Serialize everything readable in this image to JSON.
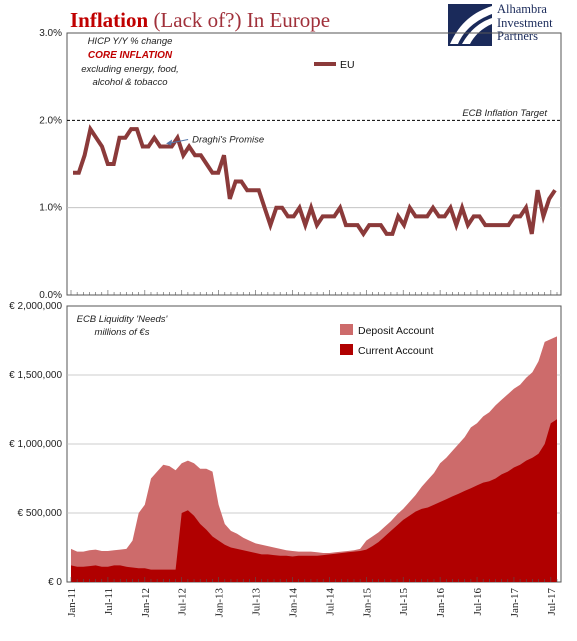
{
  "header": {
    "title_red": "Inflation",
    "title_rest": "(Lack of?) In Europe",
    "logo_text": [
      "Alhambra",
      "Investment",
      "Partners"
    ]
  },
  "colors": {
    "eu_line": "#8b3a3a",
    "deposit": "#cd6b6b",
    "current": "#b00000",
    "title_red": "#c00000",
    "target_line": "#000000",
    "grid": "#bbbbbb"
  },
  "chart_data": [
    {
      "type": "line",
      "notes": [
        "HICP Y/Y % change",
        "CORE INFLATION",
        "excluding energy, food,",
        "alcohol & tobacco"
      ],
      "ylim": [
        0,
        3
      ],
      "yticks": [
        "0.0%",
        "1.0%",
        "2.0%",
        "3.0%"
      ],
      "grid": true,
      "legend_position": "top-center",
      "target": {
        "value": 2.0,
        "label": "ECB Inflation Target"
      },
      "annotation": {
        "text": "Draghi's Promise",
        "at_index": 15
      },
      "x_start": "2011-01",
      "series": [
        {
          "name": "EU",
          "values": [
            1.4,
            1.4,
            1.6,
            1.9,
            1.8,
            1.7,
            1.5,
            1.5,
            1.8,
            1.8,
            1.9,
            1.9,
            1.7,
            1.7,
            1.8,
            1.7,
            1.7,
            1.7,
            1.8,
            1.6,
            1.7,
            1.6,
            1.6,
            1.5,
            1.4,
            1.4,
            1.6,
            1.1,
            1.3,
            1.3,
            1.2,
            1.2,
            1.2,
            1.0,
            0.8,
            1.0,
            1.0,
            0.9,
            0.9,
            1.0,
            0.8,
            1.0,
            0.8,
            0.9,
            0.9,
            0.9,
            1.0,
            0.8,
            0.8,
            0.8,
            0.7,
            0.8,
            0.8,
            0.8,
            0.7,
            0.7,
            0.9,
            0.8,
            1.0,
            0.9,
            0.9,
            0.9,
            1.0,
            0.9,
            0.9,
            1.0,
            0.8,
            1.0,
            0.8,
            0.9,
            0.9,
            0.8,
            0.8,
            0.8,
            0.8,
            0.8,
            0.9,
            0.9,
            1.0,
            0.7,
            1.2,
            0.9,
            1.1,
            1.2
          ]
        }
      ]
    },
    {
      "type": "area",
      "notes": [
        "ECB Liquidity 'Needs'",
        "millions of €s"
      ],
      "ylim": [
        0,
        2000000
      ],
      "yticks": [
        "€ 0",
        "€ 500,000",
        "€ 1,000,000",
        "€ 1,500,000",
        "€ 2,000,000"
      ],
      "grid": true,
      "legend_position": "top-right",
      "x_start": "2011-01",
      "x_step_months": 1,
      "series": [
        {
          "name": "Deposit Account",
          "stacked_total": [
            240000,
            220000,
            220000,
            230000,
            235000,
            225000,
            225000,
            230000,
            235000,
            240000,
            300000,
            500000,
            560000,
            750000,
            800000,
            850000,
            840000,
            810000,
            860000,
            880000,
            860000,
            820000,
            820000,
            800000,
            560000,
            420000,
            370000,
            350000,
            320000,
            300000,
            280000,
            270000,
            260000,
            250000,
            240000,
            230000,
            225000,
            220000,
            220000,
            220000,
            215000,
            210000,
            210000,
            215000,
            220000,
            225000,
            230000,
            240000,
            300000,
            330000,
            360000,
            400000,
            440000,
            490000,
            530000,
            580000,
            630000,
            690000,
            740000,
            790000,
            860000,
            900000,
            950000,
            1000000,
            1050000,
            1120000,
            1150000,
            1200000,
            1230000,
            1280000,
            1320000,
            1360000,
            1400000,
            1430000,
            1480000,
            1520000,
            1600000,
            1740000,
            1760000,
            1780000
          ]
        },
        {
          "name": "Current Account",
          "values": [
            120000,
            110000,
            110000,
            115000,
            120000,
            110000,
            110000,
            120000,
            120000,
            110000,
            105000,
            100000,
            100000,
            90000,
            90000,
            90000,
            90000,
            90000,
            500000,
            520000,
            480000,
            420000,
            380000,
            330000,
            300000,
            270000,
            250000,
            240000,
            230000,
            220000,
            210000,
            200000,
            200000,
            195000,
            190000,
            190000,
            185000,
            190000,
            190000,
            190000,
            190000,
            195000,
            200000,
            205000,
            210000,
            215000,
            220000,
            225000,
            235000,
            260000,
            290000,
            330000,
            370000,
            410000,
            450000,
            480000,
            510000,
            530000,
            540000,
            560000,
            580000,
            600000,
            620000,
            640000,
            660000,
            680000,
            700000,
            720000,
            730000,
            750000,
            780000,
            800000,
            830000,
            850000,
            880000,
            900000,
            930000,
            1000000,
            1150000,
            1180000
          ]
        }
      ],
      "xticks": [
        "Jan-11",
        "Jul-11",
        "Jan-12",
        "Jul-12",
        "Jan-13",
        "Jul-13",
        "Jan-14",
        "Jul-14",
        "Jan-15",
        "Jul-15",
        "Jan-16",
        "Jul-16",
        "Jan-17",
        "Jul-17"
      ]
    }
  ]
}
